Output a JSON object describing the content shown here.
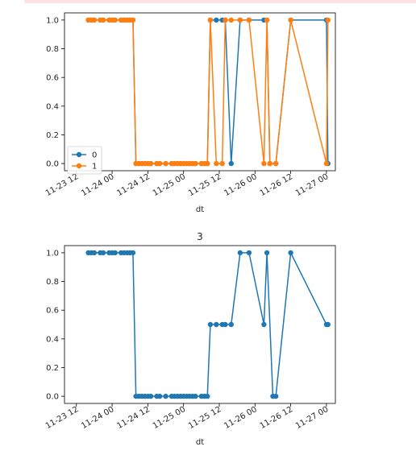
{
  "chart_data": [
    {
      "type": "line",
      "title": "",
      "xlabel": "dt",
      "ylabel": "",
      "x_ticks": [
        "11-23 12",
        "11-24 00",
        "11-24 12",
        "11-25 00",
        "11-25 12",
        "11-26 00",
        "11-26 12",
        "11-27 00"
      ],
      "y_ticks": [
        "0.0",
        "0.2",
        "0.4",
        "0.6",
        "0.8",
        "1.0"
      ],
      "xlim": [
        "2023-11-23 08:00",
        "2023-11-27 03:00"
      ],
      "ylim": [
        -0.05,
        1.05
      ],
      "legend": {
        "position": "lower-left"
      },
      "colors": {
        "0": "#1f77b4",
        "1": "#ff7f0e"
      },
      "series": [
        {
          "name": "0",
          "points": [
            [
              "2023-11-23 16:00",
              1.0
            ],
            [
              "2023-11-23 17:00",
              1.0
            ],
            [
              "2023-11-23 18:00",
              1.0
            ],
            [
              "2023-11-23 20:00",
              1.0
            ],
            [
              "2023-11-23 21:00",
              1.0
            ],
            [
              "2023-11-23 23:00",
              1.0
            ],
            [
              "2023-11-24 00:00",
              1.0
            ],
            [
              "2023-11-24 01:00",
              1.0
            ],
            [
              "2023-11-24 03:00",
              1.0
            ],
            [
              "2023-11-24 04:00",
              1.0
            ],
            [
              "2023-11-24 05:00",
              1.0
            ],
            [
              "2023-11-24 06:00",
              1.0
            ],
            [
              "2023-11-24 07:00",
              1.0
            ],
            [
              "2023-11-24 08:00",
              0.0
            ],
            [
              "2023-11-24 09:00",
              0.0
            ],
            [
              "2023-11-24 10:00",
              0.0
            ],
            [
              "2023-11-24 11:00",
              0.0
            ],
            [
              "2023-11-24 12:00",
              0.0
            ],
            [
              "2023-11-24 13:00",
              0.0
            ],
            [
              "2023-11-24 15:00",
              0.0
            ],
            [
              "2023-11-24 16:00",
              0.0
            ],
            [
              "2023-11-24 18:00",
              0.0
            ],
            [
              "2023-11-24 20:00",
              0.0
            ],
            [
              "2023-11-24 21:00",
              0.0
            ],
            [
              "2023-11-24 22:00",
              0.0
            ],
            [
              "2023-11-24 23:00",
              0.0
            ],
            [
              "2023-11-25 00:00",
              0.0
            ],
            [
              "2023-11-25 01:00",
              0.0
            ],
            [
              "2023-11-25 02:00",
              0.0
            ],
            [
              "2023-11-25 03:00",
              0.0
            ],
            [
              "2023-11-25 04:00",
              0.0
            ],
            [
              "2023-11-25 06:00",
              0.0
            ],
            [
              "2023-11-25 07:00",
              0.0
            ],
            [
              "2023-11-25 08:00",
              0.0
            ],
            [
              "2023-11-25 09:00",
              1.0
            ],
            [
              "2023-11-25 11:00",
              1.0
            ],
            [
              "2023-11-25 13:00",
              1.0
            ],
            [
              "2023-11-25 14:00",
              1.0
            ],
            [
              "2023-11-25 16:00",
              0.0
            ],
            [
              "2023-11-25 19:00",
              1.0
            ],
            [
              "2023-11-25 22:00",
              1.0
            ],
            [
              "2023-11-26 03:00",
              1.0
            ],
            [
              "2023-11-26 04:00",
              1.0
            ],
            [
              "2023-11-26 05:00",
              0.0
            ],
            [
              "2023-11-26 07:00",
              0.0
            ],
            [
              "2023-11-26 12:00",
              1.0
            ],
            [
              "2023-11-27 00:00",
              1.0
            ],
            [
              "2023-11-27 00:30",
              0.0
            ]
          ]
        },
        {
          "name": "1",
          "points": [
            [
              "2023-11-23 16:00",
              1.0
            ],
            [
              "2023-11-23 17:00",
              1.0
            ],
            [
              "2023-11-23 18:00",
              1.0
            ],
            [
              "2023-11-23 20:00",
              1.0
            ],
            [
              "2023-11-23 21:00",
              1.0
            ],
            [
              "2023-11-23 23:00",
              1.0
            ],
            [
              "2023-11-24 00:00",
              1.0
            ],
            [
              "2023-11-24 01:00",
              1.0
            ],
            [
              "2023-11-24 03:00",
              1.0
            ],
            [
              "2023-11-24 04:00",
              1.0
            ],
            [
              "2023-11-24 05:00",
              1.0
            ],
            [
              "2023-11-24 06:00",
              1.0
            ],
            [
              "2023-11-24 07:00",
              1.0
            ],
            [
              "2023-11-24 08:00",
              0.0
            ],
            [
              "2023-11-24 09:00",
              0.0
            ],
            [
              "2023-11-24 10:00",
              0.0
            ],
            [
              "2023-11-24 11:00",
              0.0
            ],
            [
              "2023-11-24 12:00",
              0.0
            ],
            [
              "2023-11-24 13:00",
              0.0
            ],
            [
              "2023-11-24 15:00",
              0.0
            ],
            [
              "2023-11-24 16:00",
              0.0
            ],
            [
              "2023-11-24 18:00",
              0.0
            ],
            [
              "2023-11-24 20:00",
              0.0
            ],
            [
              "2023-11-24 21:00",
              0.0
            ],
            [
              "2023-11-24 22:00",
              0.0
            ],
            [
              "2023-11-24 23:00",
              0.0
            ],
            [
              "2023-11-25 00:00",
              0.0
            ],
            [
              "2023-11-25 01:00",
              0.0
            ],
            [
              "2023-11-25 02:00",
              0.0
            ],
            [
              "2023-11-25 03:00",
              0.0
            ],
            [
              "2023-11-25 04:00",
              0.0
            ],
            [
              "2023-11-25 06:00",
              0.0
            ],
            [
              "2023-11-25 07:00",
              0.0
            ],
            [
              "2023-11-25 08:00",
              0.0
            ],
            [
              "2023-11-25 09:00",
              1.0
            ],
            [
              "2023-11-25 11:00",
              0.0
            ],
            [
              "2023-11-25 13:00",
              0.0
            ],
            [
              "2023-11-25 14:00",
              1.0
            ],
            [
              "2023-11-25 16:00",
              1.0
            ],
            [
              "2023-11-25 19:00",
              1.0
            ],
            [
              "2023-11-25 22:00",
              1.0
            ],
            [
              "2023-11-26 03:00",
              0.0
            ],
            [
              "2023-11-26 04:00",
              1.0
            ],
            [
              "2023-11-26 05:00",
              0.0
            ],
            [
              "2023-11-26 07:00",
              0.0
            ],
            [
              "2023-11-26 12:00",
              1.0
            ],
            [
              "2023-11-27 00:00",
              0.0
            ],
            [
              "2023-11-27 00:30",
              1.0
            ]
          ]
        }
      ]
    },
    {
      "type": "line",
      "title": "3",
      "xlabel": "dt",
      "ylabel": "",
      "x_ticks": [
        "11-23 12",
        "11-24 00",
        "11-24 12",
        "11-25 00",
        "11-25 12",
        "11-26 00",
        "11-26 12",
        "11-27 00"
      ],
      "y_ticks": [
        "0.0",
        "0.2",
        "0.4",
        "0.6",
        "0.8",
        "1.0"
      ],
      "xlim": [
        "2023-11-23 08:00",
        "2023-11-27 03:00"
      ],
      "ylim": [
        -0.05,
        1.05
      ],
      "colors": {
        "3": "#1f77b4"
      },
      "series": [
        {
          "name": "3",
          "points": [
            [
              "2023-11-23 16:00",
              1.0
            ],
            [
              "2023-11-23 17:00",
              1.0
            ],
            [
              "2023-11-23 18:00",
              1.0
            ],
            [
              "2023-11-23 20:00",
              1.0
            ],
            [
              "2023-11-23 21:00",
              1.0
            ],
            [
              "2023-11-23 23:00",
              1.0
            ],
            [
              "2023-11-24 00:00",
              1.0
            ],
            [
              "2023-11-24 01:00",
              1.0
            ],
            [
              "2023-11-24 03:00",
              1.0
            ],
            [
              "2023-11-24 04:00",
              1.0
            ],
            [
              "2023-11-24 05:00",
              1.0
            ],
            [
              "2023-11-24 06:00",
              1.0
            ],
            [
              "2023-11-24 07:00",
              1.0
            ],
            [
              "2023-11-24 08:00",
              0.0
            ],
            [
              "2023-11-24 09:00",
              0.0
            ],
            [
              "2023-11-24 10:00",
              0.0
            ],
            [
              "2023-11-24 11:00",
              0.0
            ],
            [
              "2023-11-24 12:00",
              0.0
            ],
            [
              "2023-11-24 13:00",
              0.0
            ],
            [
              "2023-11-24 15:00",
              0.0
            ],
            [
              "2023-11-24 16:00",
              0.0
            ],
            [
              "2023-11-24 18:00",
              0.0
            ],
            [
              "2023-11-24 20:00",
              0.0
            ],
            [
              "2023-11-24 21:00",
              0.0
            ],
            [
              "2023-11-24 22:00",
              0.0
            ],
            [
              "2023-11-24 23:00",
              0.0
            ],
            [
              "2023-11-25 00:00",
              0.0
            ],
            [
              "2023-11-25 01:00",
              0.0
            ],
            [
              "2023-11-25 02:00",
              0.0
            ],
            [
              "2023-11-25 03:00",
              0.0
            ],
            [
              "2023-11-25 04:00",
              0.0
            ],
            [
              "2023-11-25 06:00",
              0.0
            ],
            [
              "2023-11-25 07:00",
              0.0
            ],
            [
              "2023-11-25 08:00",
              0.0
            ],
            [
              "2023-11-25 09:00",
              0.5
            ],
            [
              "2023-11-25 11:00",
              0.5
            ],
            [
              "2023-11-25 13:00",
              0.5
            ],
            [
              "2023-11-25 14:00",
              0.5
            ],
            [
              "2023-11-25 16:00",
              0.5
            ],
            [
              "2023-11-25 19:00",
              1.0
            ],
            [
              "2023-11-25 22:00",
              1.0
            ],
            [
              "2023-11-26 03:00",
              0.5
            ],
            [
              "2023-11-26 04:00",
              1.0
            ],
            [
              "2023-11-26 06:00",
              0.0
            ],
            [
              "2023-11-26 07:00",
              0.0
            ],
            [
              "2023-11-26 12:00",
              1.0
            ],
            [
              "2023-11-27 00:00",
              0.5
            ],
            [
              "2023-11-27 00:30",
              0.5
            ]
          ]
        }
      ]
    }
  ]
}
